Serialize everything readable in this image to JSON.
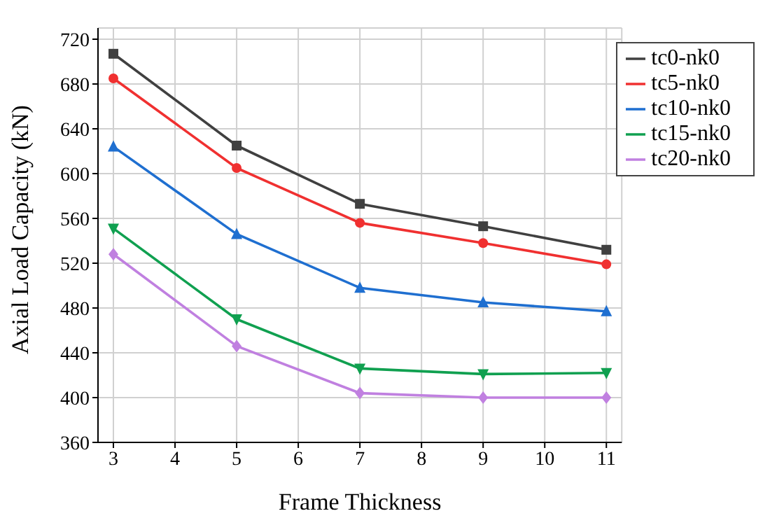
{
  "chart_data": {
    "type": "line",
    "xlabel": "Frame Thickness",
    "ylabel": "Axial Load Capacity (kN)",
    "x": [
      3,
      5,
      7,
      9,
      11
    ],
    "series": [
      {
        "name": "tc0-nk0",
        "color": "#404040",
        "marker": "square",
        "values": [
          707,
          625,
          573,
          553,
          532
        ]
      },
      {
        "name": "tc5-nk0",
        "color": "#f03030",
        "marker": "circle",
        "values": [
          685,
          605,
          556,
          538,
          519
        ]
      },
      {
        "name": "tc10-nk0",
        "color": "#1f6fd0",
        "marker": "triangle",
        "values": [
          624,
          546,
          498,
          485,
          477
        ]
      },
      {
        "name": "tc15-nk0",
        "color": "#10a050",
        "marker": "triangle-down",
        "values": [
          551,
          470,
          426,
          421,
          422
        ]
      },
      {
        "name": "tc20-nk0",
        "color": "#c080e0",
        "marker": "diamond",
        "values": [
          528,
          446,
          404,
          400,
          400
        ]
      }
    ],
    "xlim": [
      2.75,
      11.25
    ],
    "xticks": [
      3,
      4,
      5,
      6,
      7,
      8,
      9,
      10,
      11
    ],
    "ylim": [
      360,
      730
    ],
    "yticks": [
      360,
      400,
      440,
      480,
      520,
      560,
      600,
      640,
      680,
      720
    ],
    "grid": true,
    "legend": "top right",
    "line_style": "solid"
  }
}
